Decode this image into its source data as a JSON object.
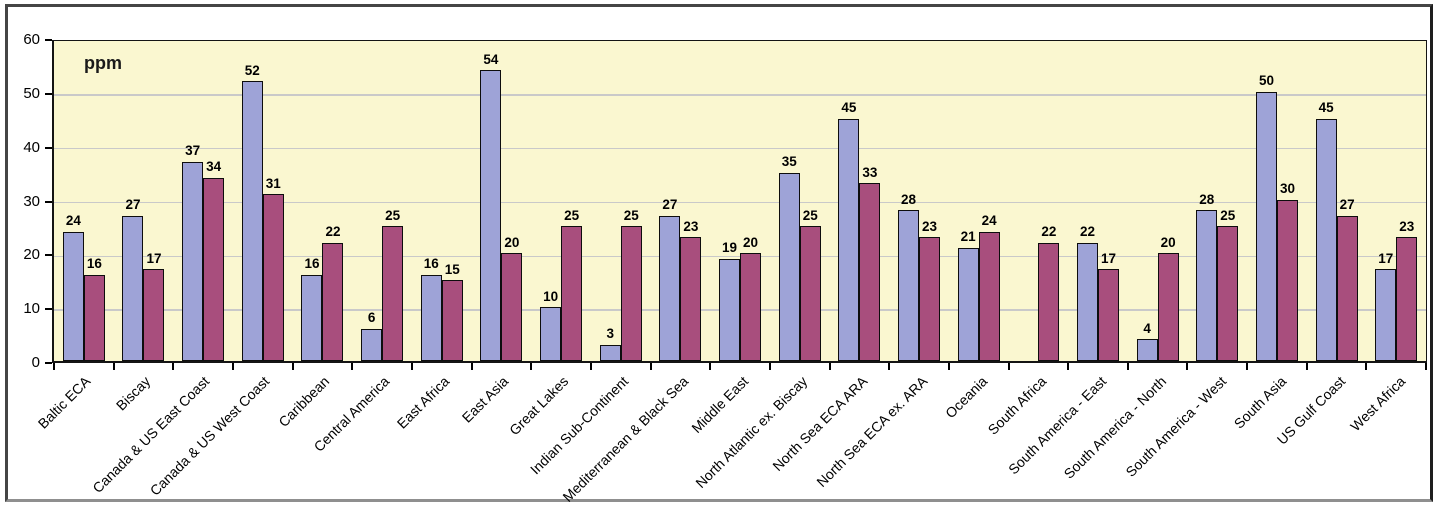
{
  "chart_data": {
    "type": "bar",
    "unit_label": "ppm",
    "title": "",
    "xlabel": "",
    "ylabel": "ppm",
    "ylim": [
      0,
      60
    ],
    "yticks": [
      0,
      10,
      20,
      30,
      40,
      50,
      60
    ],
    "grid": "horizontal-major",
    "legend_position": "none",
    "categories": [
      "Baltic ECA",
      "Biscay",
      "Canada & US East Coast",
      "Canada & US West Coast",
      "Caribbean",
      "Central America",
      "East Africa",
      "East Asia",
      "Great Lakes",
      "Indian Sub-Continent",
      "Mediterranean & Black Sea",
      "Middle East",
      "North Atlantic ex. Biscay",
      "North Sea ECA ARA",
      "North Sea ECA ex. ARA",
      "Oceania",
      "South Africa",
      "South America - East",
      "South America - North",
      "South America - West",
      "South Asia",
      "US Gulf Coast",
      "West Africa"
    ],
    "series": [
      {
        "name": "series-1-blue",
        "color": "#9ea3d7",
        "values": [
          24,
          27,
          37,
          52,
          16,
          6,
          16,
          54,
          10,
          3,
          27,
          19,
          35,
          45,
          28,
          21,
          null,
          22,
          4,
          28,
          50,
          45,
          17
        ]
      },
      {
        "name": "series-2-plum",
        "color": "#a84e7d",
        "values": [
          16,
          17,
          34,
          31,
          22,
          25,
          15,
          20,
          25,
          25,
          23,
          20,
          25,
          33,
          23,
          24,
          22,
          17,
          20,
          25,
          30,
          27,
          23
        ]
      }
    ],
    "colors": {
      "plot_background": "#faf7d0",
      "gridline": "#c9c9c9",
      "bar_border": "#0d0d0d",
      "axis": "#141414",
      "frame_border": "#454545"
    }
  }
}
